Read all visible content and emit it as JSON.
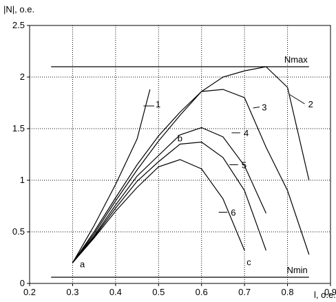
{
  "chart_data": {
    "type": "line",
    "ylabel": "|N|, o.e.",
    "xlabel": "l, o.e.",
    "xlim": [
      0.2,
      0.9
    ],
    "ylim": [
      0,
      2.5
    ],
    "x_ticks": [
      "0.2",
      "0.3",
      "0.4",
      "0.5",
      "0.6",
      "0.7",
      "0.8",
      "0.9"
    ],
    "y_ticks": [
      "0",
      "0.5",
      "1",
      "1.5",
      "2",
      "2.5"
    ],
    "grid": true,
    "hlines": [
      {
        "label": "Nmax",
        "y": 2.1,
        "x_from": 0.25,
        "x_to": 0.85
      },
      {
        "label": "Nmin",
        "y": 0.06,
        "x_from": 0.25,
        "x_to": 0.85
      }
    ],
    "series": [
      {
        "name": "1",
        "x": [
          0.3,
          0.35,
          0.4,
          0.45,
          0.48
        ],
        "y": [
          0.2,
          0.56,
          0.96,
          1.4,
          1.88
        ]
      },
      {
        "name": "2",
        "x": [
          0.3,
          0.35,
          0.4,
          0.45,
          0.5,
          0.55,
          0.6,
          0.65,
          0.7,
          0.75,
          0.8,
          0.85
        ],
        "y": [
          0.2,
          0.5,
          0.83,
          1.15,
          1.43,
          1.66,
          1.86,
          2.0,
          2.06,
          2.1,
          1.9,
          1.0
        ]
      },
      {
        "name": "3",
        "x": [
          0.3,
          0.35,
          0.4,
          0.45,
          0.5,
          0.55,
          0.6,
          0.65,
          0.7,
          0.75,
          0.8,
          0.85
        ],
        "y": [
          0.2,
          0.48,
          0.8,
          1.1,
          1.38,
          1.63,
          1.86,
          1.88,
          1.8,
          1.32,
          0.9,
          0.28
        ]
      },
      {
        "name": "4",
        "x": [
          0.3,
          0.35,
          0.4,
          0.45,
          0.5,
          0.55,
          0.6,
          0.65,
          0.7,
          0.75
        ],
        "y": [
          0.2,
          0.46,
          0.76,
          1.04,
          1.24,
          1.44,
          1.51,
          1.42,
          1.14,
          0.68
        ]
      },
      {
        "name": "5",
        "x": [
          0.3,
          0.35,
          0.4,
          0.45,
          0.5,
          0.55,
          0.6,
          0.65,
          0.7,
          0.75
        ],
        "y": [
          0.2,
          0.45,
          0.73,
          0.99,
          1.18,
          1.35,
          1.37,
          1.22,
          0.9,
          0.32
        ]
      },
      {
        "name": "6",
        "x": [
          0.3,
          0.35,
          0.4,
          0.45,
          0.5,
          0.55,
          0.6,
          0.65,
          0.7
        ],
        "y": [
          0.2,
          0.44,
          0.7,
          0.93,
          1.13,
          1.2,
          1.11,
          0.82,
          0.32
        ]
      }
    ],
    "series_labels": [
      {
        "text": "1",
        "x": 0.49,
        "y": 1.74,
        "line": [
          0.465,
          1.72,
          0.49,
          1.72
        ]
      },
      {
        "text": "2",
        "x": 0.845,
        "y": 1.74,
        "line": [
          0.805,
          1.83,
          0.84,
          1.74
        ]
      },
      {
        "text": "3",
        "x": 0.737,
        "y": 1.71,
        "line": [
          0.72,
          1.7,
          0.735,
          1.71
        ]
      },
      {
        "text": "4",
        "x": 0.695,
        "y": 1.46,
        "line": [
          0.67,
          1.46,
          0.69,
          1.46
        ]
      },
      {
        "text": "5",
        "x": 0.69,
        "y": 1.15,
        "line": [
          0.665,
          1.15,
          0.685,
          1.15
        ]
      },
      {
        "text": "6",
        "x": 0.665,
        "y": 0.69,
        "line": [
          0.64,
          0.69,
          0.66,
          0.69
        ]
      }
    ],
    "annotations": [
      {
        "text": "a",
        "x": 0.317,
        "y": 0.19
      },
      {
        "text": "b",
        "x": 0.544,
        "y": 1.41
      },
      {
        "text": "c",
        "x": 0.705,
        "y": 0.21
      }
    ]
  }
}
